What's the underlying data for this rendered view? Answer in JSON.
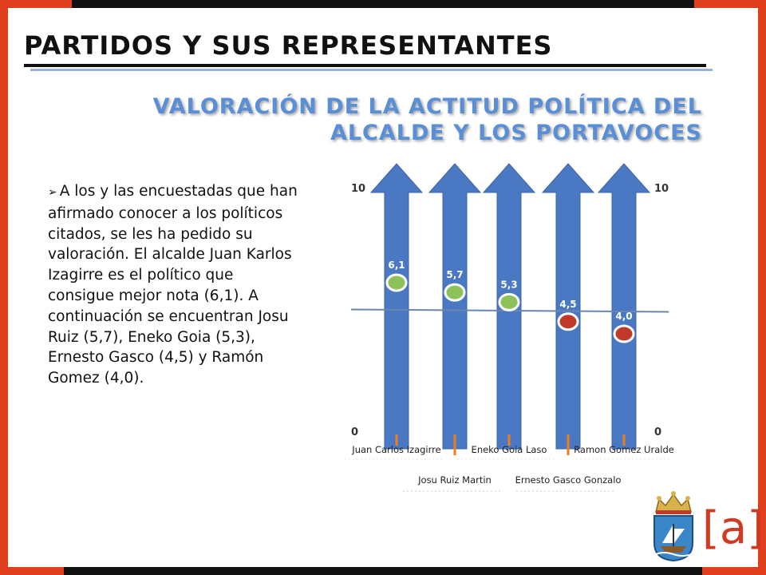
{
  "slide": {
    "title": "PARTIDOS Y SUS REPRESENTANTES",
    "subtitle_line1": "VALORACIÓN DE LA ACTITUD POLÍTICA DEL",
    "subtitle_line2": "ALCALDE Y LOS PORTAVOCES",
    "bullet_marker": "➢",
    "bullet_text": "A los y las encuestadas que han afirmado conocer a los políticos citados, se les ha pedido su valoración. El alcalde Juan Karlos Izagirre es el político que consigue mejor nota (6,1). A continuación se encuentran  Josu Ruiz (5,7), Eneko Goia (5,3), Ernesto Gasco (4,5) y Ramón Gomez (4,0).",
    "logo_text": "[a]"
  },
  "colors": {
    "accent_frame": "#e0401e",
    "title_text": "#111111",
    "subtitle_text": "#5a8fd6",
    "arrow_fill": "#4a78c2",
    "dot_above": "#8dc15a",
    "dot_below": "#c0392b",
    "label_tick": "#f07d1a"
  },
  "chart_data": {
    "type": "scatter",
    "title": "",
    "xlabel": "",
    "ylabel": "",
    "ylim": [
      0,
      10
    ],
    "y_tick_labels": [
      "10",
      "0"
    ],
    "reference_line": 5,
    "categories": [
      "Juan Carlos Izagirre",
      "Josu Ruiz Martin",
      "Eneko Goia Laso",
      "Ernesto Gasco Gonzalo",
      "Ramon Gomez Uralde"
    ],
    "values": [
      6.1,
      5.7,
      5.3,
      4.5,
      4.0
    ],
    "value_labels": [
      "6,1",
      "5,7",
      "5,3",
      "4,5",
      "4,0"
    ],
    "label_rows": [
      "top",
      "bottom",
      "top",
      "bottom",
      "top"
    ]
  }
}
